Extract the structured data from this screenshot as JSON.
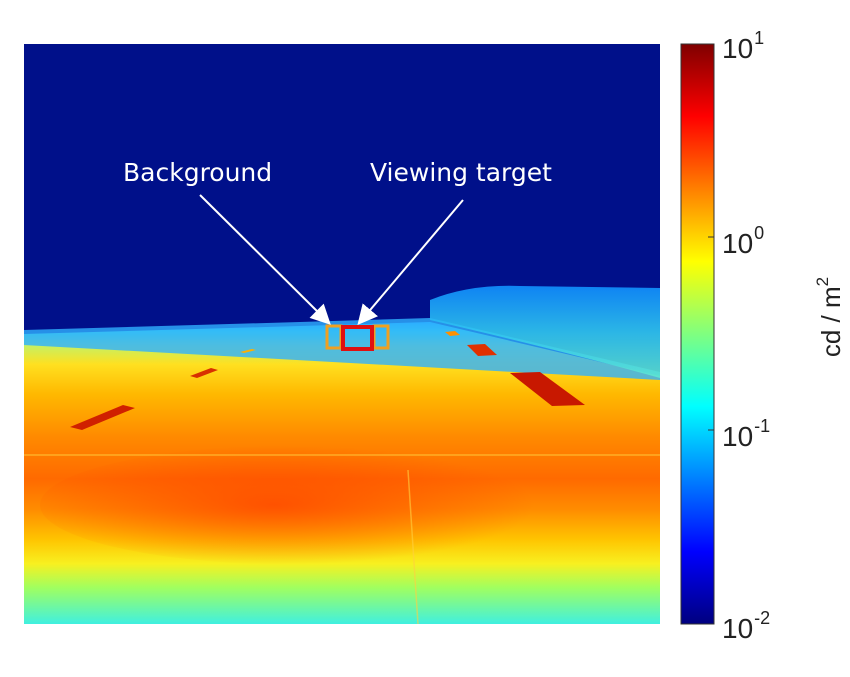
{
  "annotations": {
    "background_label": "Background",
    "target_label": "Viewing target"
  },
  "colorbar": {
    "scale": "log",
    "range": [
      0.01,
      10
    ],
    "ticks": [
      {
        "base": "10",
        "exp": "1"
      },
      {
        "base": "10",
        "exp": "0"
      },
      {
        "base": "10",
        "exp": "-1"
      },
      {
        "base": "10",
        "exp": "-2"
      }
    ],
    "unit_main": "cd / m",
    "unit_exp": "2",
    "colormap": "jet"
  },
  "colors": {
    "background_box": "#f0a020",
    "target_box": "#e01010",
    "sky": "#00108a"
  }
}
